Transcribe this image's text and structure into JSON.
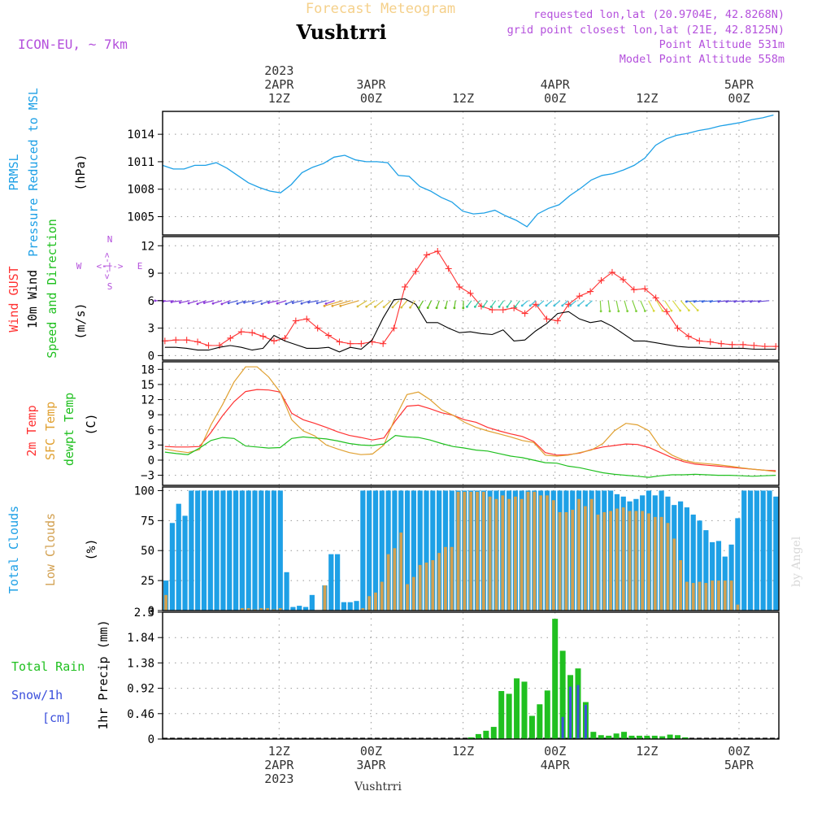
{
  "header": {
    "product": "Forecast Meteogram",
    "location": "Vushtrri",
    "model": "ICON-EU, ~ 7km",
    "requested": "requested lon,lat (20.9704E, 42.8268N)",
    "grid": "grid point closest lon,lat (21E, 42.8125N)",
    "point_alt": "Point Altitude 531m",
    "model_alt": "Model Point Altitude 558m",
    "credit": "by Angel",
    "footer_location": "Vushtrri"
  },
  "colors": {
    "pressure": "#1ea0e6",
    "gust": "#ff3232",
    "wind": "#000000",
    "dir": "#20c020",
    "temp": "#ff3232",
    "sfc": "#e0a030",
    "dew": "#20c020",
    "total_cloud": "#1ea0e6",
    "low_cloud": "#d2a050",
    "rain": "#20c020",
    "snow": "#3c50dc",
    "purple": "#b450dc",
    "grid": "#999999"
  },
  "time_axis": {
    "top_labels": [
      {
        "t": 12,
        "lines": [
          "2023",
          "2APR",
          "12Z"
        ]
      },
      {
        "t": 24,
        "lines": [
          "3APR",
          "00Z"
        ]
      },
      {
        "t": 36,
        "lines": [
          "12Z"
        ]
      },
      {
        "t": 48,
        "lines": [
          "4APR",
          "00Z"
        ]
      },
      {
        "t": 60,
        "lines": [
          "12Z"
        ]
      },
      {
        "t": 72,
        "lines": [
          "5APR",
          "00Z"
        ]
      }
    ],
    "bottom_labels": [
      {
        "t": 12,
        "lines": [
          "12Z",
          "2APR",
          "2023"
        ]
      },
      {
        "t": 24,
        "lines": [
          "00Z",
          "3APR"
        ]
      },
      {
        "t": 36,
        "lines": [
          "12Z"
        ]
      },
      {
        "t": 48,
        "lines": [
          "00Z",
          "4APR"
        ]
      },
      {
        "t": 60,
        "lines": [
          "12Z"
        ]
      },
      {
        "t": 72,
        "lines": [
          "00Z",
          "5APR"
        ]
      }
    ]
  },
  "chart_data": [
    {
      "type": "line",
      "title": "PRMSL Pressure Reduced to MSL",
      "ylabel_lines": [
        "PRMSL",
        "Pressure Reduced to MSL"
      ],
      "unit": "(hPa)",
      "ylim": [
        1003,
        1016.5
      ],
      "yticks": [
        1005,
        1008,
        1011,
        1014
      ],
      "x_hours": [
        0,
        1,
        2,
        3,
        4,
        5,
        6,
        7,
        8,
        9,
        10,
        11,
        12,
        13,
        14,
        15,
        16,
        17,
        18,
        19,
        20,
        21,
        22,
        23,
        24,
        25,
        26,
        27,
        28,
        29,
        30,
        31,
        32,
        33,
        34,
        35,
        36,
        37,
        38,
        39,
        40,
        41,
        42,
        43,
        44,
        45,
        46,
        47,
        48,
        49,
        50,
        51,
        52,
        53,
        54,
        55,
        56,
        57,
        58,
        59,
        60,
        61,
        62,
        63,
        64,
        65,
        66,
        67,
        68,
        69,
        70,
        71,
        72,
        73,
        74,
        75,
        76
      ],
      "series": [
        {
          "name": "PRMSL",
          "values": [
            1010.6,
            1010.2,
            1010.2,
            1010.6,
            1010.6,
            1010.9,
            1010.3,
            1009.5,
            1008.7,
            1008.2,
            1007.8,
            1007.6,
            1008.5,
            1009.8,
            1010.4,
            1010.8,
            1011.5,
            1011.7,
            1011.2,
            1011.0,
            1011.0,
            1010.9,
            1009.5,
            1009.4,
            1008.3,
            1007.8,
            1007.1,
            1006.6,
            1005.6,
            1005.3,
            1005.4,
            1005.7,
            1005.1,
            1004.6,
            1003.9,
            1005.3,
            1005.9,
            1006.3,
            1007.3,
            1008.1,
            1009.0,
            1009.5,
            1009.7,
            1010.1,
            1010.6,
            1011.4,
            1012.8,
            1013.5,
            1013.9,
            1014.1,
            1014.4,
            1014.6,
            1014.9,
            1015.1,
            1015.3,
            1015.6,
            1015.8,
            1016.1
          ]
        }
      ]
    },
    {
      "type": "line",
      "title": "Wind GUST / 10m Wind Speed and Direction",
      "ylabel_lines": [
        "Wind GUST",
        "10m Wind",
        "Speed and Direction"
      ],
      "unit": "(m/s)",
      "compass": {
        "n": "N",
        "s": "S",
        "w": "W",
        "e": "E",
        "arrow_h": "<-|->",
        "arrow_v": "<-|->"
      },
      "ylim": [
        -0.5,
        13
      ],
      "yticks": [
        0,
        3,
        6,
        9,
        12
      ],
      "series": [
        {
          "name": "Wind GUST",
          "values": [
            1.6,
            1.7,
            1.7,
            1.5,
            1.1,
            1.1,
            1.9,
            2.6,
            2.5,
            2.1,
            1.6,
            1.9,
            3.8,
            4.0,
            3.0,
            2.2,
            1.5,
            1.3,
            1.3,
            1.5,
            1.3,
            3.0,
            7.5,
            9.2,
            11.0,
            11.4,
            9.5,
            7.5,
            6.8,
            5.4,
            5.0,
            5.0,
            5.2,
            4.6,
            5.6,
            4.0,
            3.8,
            5.6,
            6.5,
            7.0,
            8.2,
            9.1,
            8.3,
            7.2,
            7.3,
            6.3,
            4.8,
            3.0,
            2.1,
            1.6,
            1.5,
            1.3,
            1.2,
            1.2,
            1.1,
            1.0,
            1.0
          ]
        },
        {
          "name": "10m Wind",
          "values": [
            0.9,
            0.9,
            0.8,
            0.6,
            0.6,
            0.9,
            1.1,
            0.9,
            0.6,
            0.8,
            2.2,
            1.6,
            1.2,
            0.8,
            0.8,
            0.9,
            0.4,
            0.9,
            0.7,
            1.7,
            4.1,
            6.1,
            6.2,
            5.6,
            3.6,
            3.6,
            3.0,
            2.5,
            2.6,
            2.4,
            2.3,
            2.8,
            1.6,
            1.7,
            2.7,
            3.5,
            4.6,
            4.8,
            4.0,
            3.6,
            3.8,
            3.2,
            2.4,
            1.6,
            1.6,
            1.4,
            1.2,
            1.0,
            0.9,
            0.9,
            0.8,
            0.8,
            0.8,
            0.8,
            0.7,
            0.7,
            0.7
          ]
        }
      ],
      "wind_arrows": "direction glyphs along the 6 m/s line (purple W/SW flow at start and end, orange/green/cyan mid-period)"
    },
    {
      "type": "line",
      "title": "2m Temp / SFC Temp / dewpt Temp",
      "ylabel_lines": [
        "2m Temp",
        "SFC Temp",
        "dewpt Temp"
      ],
      "unit": "(C)",
      "ylim": [
        -5,
        19.5
      ],
      "yticks": [
        -3,
        0,
        3,
        6,
        9,
        12,
        15,
        18
      ],
      "series": [
        {
          "name": "2m Temp",
          "values": [
            2.7,
            2.6,
            2.6,
            2.7,
            5.5,
            8.8,
            11.6,
            13.6,
            14.0,
            13.9,
            13.5,
            9.3,
            8.0,
            7.3,
            6.5,
            5.6,
            4.9,
            4.5,
            4.0,
            4.4,
            7.8,
            10.7,
            10.9,
            10.2,
            9.4,
            8.9,
            8.0,
            7.5,
            6.5,
            5.8,
            5.2,
            4.7,
            3.7,
            1.5,
            1.0,
            1.1,
            1.4,
            2.1,
            2.6,
            2.9,
            3.2,
            3.1,
            2.5,
            1.5,
            0.5,
            -0.3,
            -0.8,
            -1.0,
            -1.2,
            -1.4,
            -1.6,
            -1.8,
            -2.0,
            -2.1
          ]
        },
        {
          "name": "SFC Temp",
          "values": [
            2.2,
            1.8,
            1.5,
            2.1,
            7.0,
            11.0,
            15.5,
            18.5,
            18.5,
            16.5,
            13.5,
            8.0,
            5.8,
            4.8,
            3.0,
            2.2,
            1.5,
            1.1,
            1.2,
            3.0,
            8.5,
            13.0,
            13.5,
            12.0,
            10.0,
            8.9,
            7.5,
            6.5,
            5.8,
            5.2,
            4.6,
            3.9,
            3.5,
            1.0,
            0.8,
            1.0,
            1.5,
            2.0,
            3.3,
            5.8,
            7.3,
            7.0,
            5.8,
            2.5,
            1.0,
            0.0,
            -0.5,
            -0.7,
            -0.9,
            -1.2,
            -1.5,
            -1.8,
            -2.0,
            -2.3
          ]
        },
        {
          "name": "dewpt Temp",
          "values": [
            1.6,
            1.3,
            1.1,
            2.4,
            3.9,
            4.5,
            4.3,
            2.8,
            2.6,
            2.4,
            2.5,
            4.3,
            4.6,
            4.4,
            4.2,
            3.8,
            3.3,
            3.0,
            2.9,
            3.2,
            4.9,
            4.6,
            4.5,
            4.0,
            3.3,
            2.7,
            2.4,
            2.0,
            1.8,
            1.3,
            0.8,
            0.5,
            0.0,
            -0.5,
            -0.6,
            -1.2,
            -1.5,
            -2.0,
            -2.5,
            -2.8,
            -3.0,
            -3.2,
            -3.4,
            -3.1,
            -2.9,
            -2.9,
            -2.8,
            -2.9,
            -3.0,
            -3.0,
            -3.1,
            -3.2,
            -3.1,
            -3.0
          ]
        }
      ]
    },
    {
      "type": "bar",
      "title": "Total Clouds / Low Clouds",
      "ylabel_lines": [
        "Total Clouds",
        "Low Clouds"
      ],
      "unit": "(%)",
      "ylim": [
        0,
        103
      ],
      "yticks": [
        0,
        25,
        50,
        75,
        100
      ],
      "series": [
        {
          "name": "Total Clouds",
          "values": [
            25,
            73,
            89,
            79,
            100,
            100,
            100,
            100,
            100,
            100,
            100,
            100,
            100,
            100,
            100,
            100,
            100,
            100,
            100,
            32,
            3,
            4,
            3,
            13,
            0,
            21,
            47,
            47,
            7,
            7,
            8,
            100,
            100,
            100,
            100,
            100,
            100,
            100,
            100,
            100,
            100,
            100,
            100,
            100,
            100,
            100,
            100,
            100,
            100,
            100,
            100,
            100,
            100,
            100,
            100,
            100,
            100,
            100,
            100,
            100,
            100,
            100,
            100,
            100,
            100,
            100,
            100,
            100,
            100,
            100,
            100,
            97,
            95,
            91,
            93,
            96,
            100,
            96,
            100,
            95,
            88,
            91,
            86,
            80,
            75,
            67,
            57,
            58,
            45,
            55,
            77,
            100,
            100,
            100,
            100,
            100,
            95
          ]
        },
        {
          "name": "Low Clouds",
          "values": [
            13,
            0,
            0,
            0,
            0,
            0,
            0,
            0,
            0,
            0,
            0,
            0,
            2,
            2,
            1,
            2,
            2,
            1,
            2,
            0,
            0,
            0,
            0,
            0,
            0,
            21,
            0,
            0,
            0,
            0,
            0,
            2,
            12,
            15,
            24,
            47,
            52,
            65,
            22,
            28,
            38,
            40,
            42,
            48,
            53,
            53,
            99,
            99,
            99,
            99,
            99,
            95,
            93,
            96,
            93,
            95,
            93,
            99,
            99,
            96,
            96,
            92,
            82,
            82,
            84,
            93,
            87,
            93,
            80,
            82,
            83,
            85,
            86,
            83,
            83,
            83,
            81,
            78,
            78,
            73,
            60,
            42,
            24,
            23,
            24,
            23,
            25,
            25,
            25,
            25,
            5,
            0,
            0,
            0,
            0,
            0,
            0,
            4
          ]
        }
      ]
    },
    {
      "type": "bar",
      "title": "Total Rain / Snow 1hr Precip",
      "ylabel_lines": [
        "Total  Rain",
        "Snow/1h",
        "[cm]"
      ],
      "unit": "1hr Precip (mm)",
      "ylim": [
        0,
        2.3
      ],
      "yticks": [
        0,
        0.46,
        0.92,
        1.38,
        1.84,
        2.3
      ],
      "series": [
        {
          "name": "Total Rain",
          "values": [
            0,
            0,
            0,
            0,
            0,
            0,
            0,
            0,
            0,
            0,
            0,
            0,
            0,
            0,
            0,
            0,
            0,
            0,
            0,
            0,
            0,
            0,
            0,
            0,
            0,
            0,
            0,
            0,
            0,
            0,
            0,
            0,
            0,
            0,
            0,
            0,
            0,
            0,
            0,
            0,
            0,
            0,
            0,
            0,
            0,
            0,
            0,
            0,
            0,
            0,
            0,
            0,
            0,
            0,
            0,
            0,
            0,
            0,
            0,
            0,
            0,
            0,
            0,
            0,
            0,
            0,
            0,
            0,
            0,
            0,
            0,
            0,
            0,
            0,
            0,
            0,
            0,
            0,
            0,
            0,
            0,
            0,
            0,
            0,
            0,
            0,
            0,
            0,
            0,
            0,
            0,
            0,
            0,
            0,
            0,
            0,
            0
          ]
        },
        {
          "name": "Rain bars",
          "x_hours": [
            37,
            38,
            39,
            40,
            41,
            42,
            43,
            44,
            45,
            46,
            47,
            48,
            49,
            50,
            51,
            52,
            53,
            54,
            55,
            56,
            57,
            58,
            59,
            60,
            61,
            62,
            63,
            64,
            65
          ],
          "values": [
            0.03,
            0.09,
            0.15,
            0.22,
            0.87,
            0.82,
            1.1,
            1.04,
            0.42,
            0.63,
            0.88,
            2.18,
            1.6,
            1.16,
            1.28,
            0.67,
            0.13,
            0.07,
            0.06,
            0.1,
            0.13,
            0.06,
            0.06,
            0.06,
            0.06,
            0.05,
            0.08,
            0.07,
            0.03
          ]
        },
        {
          "name": "Snow/1h",
          "x_hours": [
            49,
            50,
            51,
            52
          ],
          "values": [
            0.4,
            0.95,
            0.98,
            0.62
          ]
        }
      ]
    }
  ]
}
